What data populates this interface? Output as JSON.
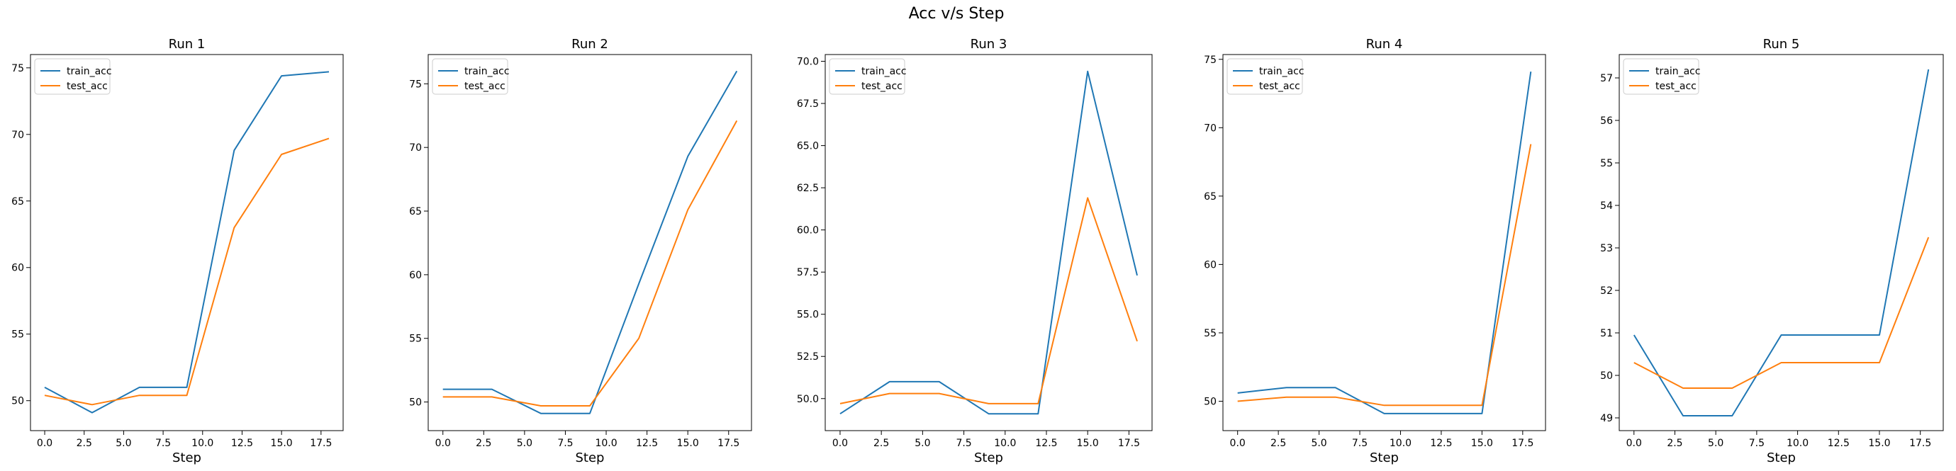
{
  "figure": {
    "title": "Acc v/s Step",
    "colors": {
      "train_acc": "#1f77b4",
      "test_acc": "#ff7f0e"
    }
  },
  "chart_data": [
    {
      "type": "line",
      "title": "Run 1",
      "xlabel": "Step",
      "ylabel": "",
      "x": [
        0,
        3,
        6,
        9,
        12,
        15,
        18
      ],
      "xlim": [
        -0.9,
        18.9
      ],
      "ylim": [
        47.75,
        76.0
      ],
      "xticks": [
        0.0,
        2.5,
        5.0,
        7.5,
        10.0,
        12.5,
        15.0,
        17.5
      ],
      "xtick_labels": [
        "0.0",
        "2.5",
        "5.0",
        "7.5",
        "10.0",
        "12.5",
        "15.0",
        "17.5"
      ],
      "yticks": [
        50,
        55,
        60,
        65,
        70,
        75
      ],
      "ytick_labels": [
        "50",
        "55",
        "60",
        "65",
        "70",
        "75"
      ],
      "legend": "top-left",
      "grid": false,
      "series": [
        {
          "name": "train_acc",
          "values": [
            51.0,
            49.1,
            51.0,
            51.0,
            68.8,
            74.4,
            74.7
          ]
        },
        {
          "name": "test_acc",
          "values": [
            50.4,
            49.7,
            50.4,
            50.4,
            63.0,
            68.5,
            69.7
          ]
        }
      ]
    },
    {
      "type": "line",
      "title": "Run 2",
      "xlabel": "Step",
      "ylabel": "",
      "x": [
        0,
        3,
        6,
        9,
        12,
        15,
        18
      ],
      "xlim": [
        -0.9,
        18.9
      ],
      "ylim": [
        47.75,
        77.3
      ],
      "xticks": [
        0.0,
        2.5,
        5.0,
        7.5,
        10.0,
        12.5,
        15.0,
        17.5
      ],
      "xtick_labels": [
        "0.0",
        "2.5",
        "5.0",
        "7.5",
        "10.0",
        "12.5",
        "15.0",
        "17.5"
      ],
      "yticks": [
        50,
        55,
        60,
        65,
        70,
        75
      ],
      "ytick_labels": [
        "50",
        "55",
        "60",
        "65",
        "70",
        "75"
      ],
      "legend": "top-left",
      "grid": false,
      "series": [
        {
          "name": "train_acc",
          "values": [
            51.0,
            51.0,
            49.1,
            49.1,
            59.3,
            69.3,
            76.0
          ]
        },
        {
          "name": "test_acc",
          "values": [
            50.4,
            50.4,
            49.7,
            49.7,
            55.0,
            65.1,
            72.1
          ]
        }
      ]
    },
    {
      "type": "line",
      "title": "Run 3",
      "xlabel": "Step",
      "ylabel": "",
      "x": [
        0,
        3,
        6,
        9,
        12,
        15,
        18
      ],
      "xlim": [
        -0.9,
        18.9
      ],
      "ylim": [
        48.1,
        70.4
      ],
      "xticks": [
        0.0,
        2.5,
        5.0,
        7.5,
        10.0,
        12.5,
        15.0,
        17.5
      ],
      "xtick_labels": [
        "0.0",
        "2.5",
        "5.0",
        "7.5",
        "10.0",
        "12.5",
        "15.0",
        "17.5"
      ],
      "yticks": [
        50.0,
        52.5,
        55.0,
        57.5,
        60.0,
        62.5,
        65.0,
        67.5,
        70.0
      ],
      "ytick_labels": [
        "50.0",
        "52.5",
        "55.0",
        "57.5",
        "60.0",
        "62.5",
        "65.0",
        "67.5",
        "70.0"
      ],
      "legend": "top-left",
      "grid": false,
      "series": [
        {
          "name": "train_acc",
          "values": [
            49.1,
            51.0,
            51.0,
            49.1,
            49.1,
            69.4,
            57.3
          ]
        },
        {
          "name": "test_acc",
          "values": [
            49.7,
            50.3,
            50.3,
            49.7,
            49.7,
            61.9,
            53.4
          ]
        }
      ]
    },
    {
      "type": "line",
      "title": "Run 4",
      "xlabel": "Step",
      "ylabel": "",
      "x": [
        0,
        3,
        6,
        9,
        12,
        15,
        18
      ],
      "xlim": [
        -0.9,
        18.9
      ],
      "ylim": [
        47.85,
        75.35
      ],
      "xticks": [
        0.0,
        2.5,
        5.0,
        7.5,
        10.0,
        12.5,
        15.0,
        17.5
      ],
      "xtick_labels": [
        "0.0",
        "2.5",
        "5.0",
        "7.5",
        "10.0",
        "12.5",
        "15.0",
        "17.5"
      ],
      "yticks": [
        50,
        55,
        60,
        65,
        70,
        75
      ],
      "ytick_labels": [
        "50",
        "55",
        "60",
        "65",
        "70",
        "75"
      ],
      "legend": "top-left",
      "grid": false,
      "series": [
        {
          "name": "train_acc",
          "values": [
            50.6,
            51.0,
            51.0,
            49.1,
            49.1,
            49.1,
            74.1
          ]
        },
        {
          "name": "test_acc",
          "values": [
            50.0,
            50.3,
            50.3,
            49.7,
            49.7,
            49.7,
            68.8
          ]
        }
      ]
    },
    {
      "type": "line",
      "title": "Run 5",
      "xlabel": "Step",
      "ylabel": "",
      "x": [
        0,
        3,
        6,
        9,
        12,
        15,
        18
      ],
      "xlim": [
        -0.9,
        18.9
      ],
      "ylim": [
        48.7,
        57.55
      ],
      "xticks": [
        0.0,
        2.5,
        5.0,
        7.5,
        10.0,
        12.5,
        15.0,
        17.5
      ],
      "xtick_labels": [
        "0.0",
        "2.5",
        "5.0",
        "7.5",
        "10.0",
        "12.5",
        "15.0",
        "17.5"
      ],
      "yticks": [
        49,
        50,
        51,
        52,
        53,
        54,
        55,
        56,
        57
      ],
      "ytick_labels": [
        "49",
        "50",
        "51",
        "52",
        "53",
        "54",
        "55",
        "56",
        "57"
      ],
      "legend": "top-left",
      "grid": false,
      "series": [
        {
          "name": "train_acc",
          "values": [
            50.95,
            49.05,
            49.05,
            50.95,
            50.95,
            50.95,
            57.2
          ]
        },
        {
          "name": "test_acc",
          "values": [
            50.3,
            49.7,
            49.7,
            50.3,
            50.3,
            50.3,
            53.25
          ]
        }
      ]
    }
  ]
}
